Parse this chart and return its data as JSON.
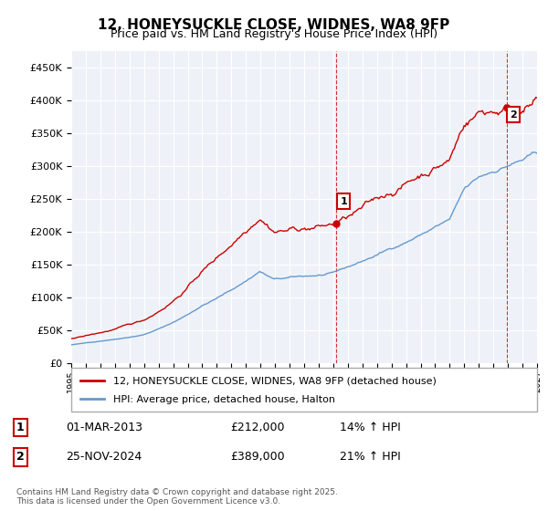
{
  "title": "12, HONEYSUCKLE CLOSE, WIDNES, WA8 9FP",
  "subtitle": "Price paid vs. HM Land Registry's House Price Index (HPI)",
  "legend_line1": "12, HONEYSUCKLE CLOSE, WIDNES, WA8 9FP (detached house)",
  "legend_line2": "HPI: Average price, detached house, Halton",
  "annotation1_label": "1",
  "annotation1_date": "01-MAR-2013",
  "annotation1_price": 212000,
  "annotation1_hpi": "14% ↑ HPI",
  "annotation2_label": "2",
  "annotation2_date": "25-NOV-2024",
  "annotation2_price": 389000,
  "annotation2_hpi": "21% ↑ HPI",
  "footnote": "Contains HM Land Registry data © Crown copyright and database right 2025.\nThis data is licensed under the Open Government Licence v3.0.",
  "red_color": "#cc0000",
  "blue_color": "#6699cc",
  "bg_color": "#ffffff",
  "plot_bg_color": "#eef2f8",
  "grid_color": "#ffffff",
  "ylim": [
    0,
    475000
  ],
  "yticks": [
    0,
    50000,
    100000,
    150000,
    200000,
    250000,
    300000,
    350000,
    400000,
    450000
  ],
  "x_start_year": 1995,
  "x_end_year": 2027
}
